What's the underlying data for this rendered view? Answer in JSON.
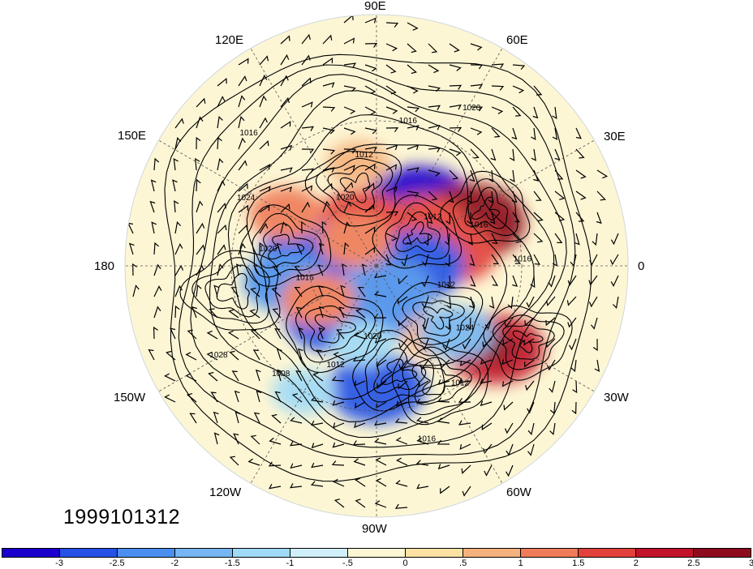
{
  "map": {
    "projection": "north-polar-stereographic",
    "longitude_labels": [
      {
        "id": "lon-90e",
        "text": "90E"
      },
      {
        "id": "lon-60e",
        "text": "60E"
      },
      {
        "id": "lon-30e",
        "text": "30E"
      },
      {
        "id": "lon-0",
        "text": "0"
      },
      {
        "id": "lon-30w",
        "text": "30W"
      },
      {
        "id": "lon-60w",
        "text": "60W"
      },
      {
        "id": "lon-90w",
        "text": "90W"
      },
      {
        "id": "lon-120w",
        "text": "120W"
      },
      {
        "id": "lon-150w",
        "text": "150W"
      },
      {
        "id": "lon-180",
        "text": "180"
      },
      {
        "id": "lon-150e",
        "text": "150E"
      },
      {
        "id": "lon-120e",
        "text": "120E"
      }
    ],
    "contour_labels": [
      "1012",
      "1024",
      "1012",
      "1016",
      "1020",
      "1012",
      "1008",
      "1028",
      "1016",
      "1020",
      "1024",
      "1016",
      "1020",
      "1012",
      "1016",
      "1020",
      "1012",
      "1016",
      "1016"
    ],
    "anomalies": [
      {
        "lon": 55,
        "lat": 57,
        "value": -3
      },
      {
        "lon": 25,
        "lat": 45,
        "value": 3
      },
      {
        "lon": 60,
        "lat": 72,
        "value": 2
      },
      {
        "lon": 40,
        "lat": 62,
        "value": 2
      },
      {
        "lon": 10,
        "lat": 55,
        "value": 2
      },
      {
        "lon": 110,
        "lat": 68,
        "value": 2
      },
      {
        "lon": 0,
        "lat": 72,
        "value": -2.5
      },
      {
        "lon": 170,
        "lat": 60,
        "value": -2.5
      },
      {
        "lon": -170,
        "lat": 50,
        "value": -2
      },
      {
        "lon": -130,
        "lat": 60,
        "value": -2.5
      },
      {
        "lon": -80,
        "lat": 70,
        "value": -2
      },
      {
        "lon": -60,
        "lat": 78,
        "value": -2
      },
      {
        "lon": -90,
        "lat": 38,
        "value": -2.5
      },
      {
        "lon": -50,
        "lat": 50,
        "value": 1
      },
      {
        "lon": -35,
        "lat": 30,
        "value": 2.5
      },
      {
        "lon": -40,
        "lat": 45,
        "value": -1.5
      },
      {
        "lon": 150,
        "lat": 45,
        "value": 1.5
      },
      {
        "lon": -150,
        "lat": 60,
        "value": 1.5
      },
      {
        "lon": 100,
        "lat": 45,
        "value": 1
      },
      {
        "lon": -100,
        "lat": 55,
        "value": -1
      },
      {
        "lon": 130,
        "lat": 75,
        "value": 1.5
      },
      {
        "lon": -120,
        "lat": 30,
        "value": -1
      }
    ]
  },
  "timestamp": "1999101312",
  "colorbar": {
    "colors": [
      "#1a00cc",
      "#2451e6",
      "#4a8fef",
      "#76b6f2",
      "#9fdaf7",
      "#cfeffa",
      "#fdf6d4",
      "#fbe2a3",
      "#f6b27d",
      "#ef7b58",
      "#e2403a",
      "#c2132a",
      "#8e0a1d"
    ],
    "tick_labels": [
      "-3",
      "-2.5",
      "-2",
      "-1.5",
      "-1",
      "-.5",
      "0",
      ".5",
      "1",
      "1.5",
      "2",
      "2.5",
      "3"
    ]
  }
}
